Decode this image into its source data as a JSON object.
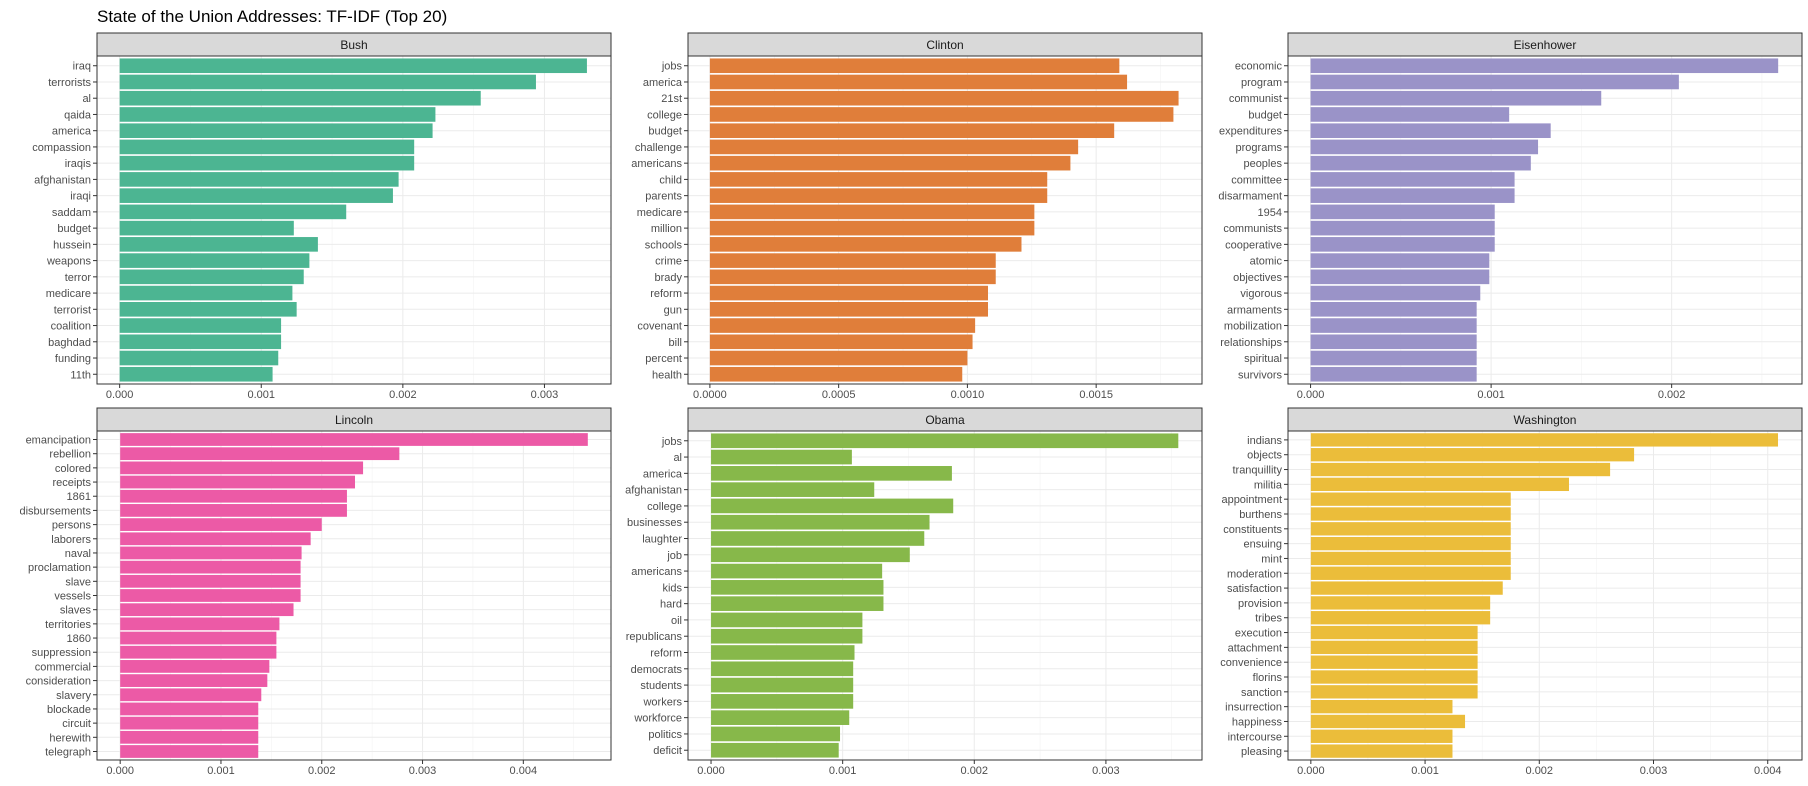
{
  "chart_data": {
    "type": "bar",
    "orientation": "horizontal",
    "title": "State of the Union Addresses: TF-IDF (Top 20)",
    "xlabel": "",
    "ylabel": "",
    "grid": true,
    "facets": [
      {
        "name": "Bush",
        "color": "#4cb592",
        "categories": [
          "iraq",
          "terrorists",
          "al",
          "qaida",
          "america",
          "compassion",
          "iraqis",
          "afghanistan",
          "iraqi",
          "saddam",
          "budget",
          "hussein",
          "weapons",
          "terror",
          "medicare",
          "terrorist",
          "coalition",
          "baghdad",
          "funding",
          "11th"
        ],
        "values": [
          0.0033,
          0.00294,
          0.00255,
          0.00223,
          0.00221,
          0.00208,
          0.00208,
          0.00197,
          0.00193,
          0.0016,
          0.00123,
          0.0014,
          0.00134,
          0.0013,
          0.00122,
          0.00125,
          0.00114,
          0.00114,
          0.00112,
          0.00108
        ],
        "xlim": [
          -0.00016,
          0.00347
        ],
        "ticks": [
          0,
          0.001,
          0.002,
          0.003
        ],
        "tick_labels": [
          "0.000",
          "0.001",
          "0.002",
          "0.003"
        ]
      },
      {
        "name": "Clinton",
        "color": "#e07e3a",
        "categories": [
          "jobs",
          "america",
          "21st",
          "college",
          "budget",
          "challenge",
          "americans",
          "child",
          "parents",
          "medicare",
          "million",
          "schools",
          "crime",
          "brady",
          "reform",
          "gun",
          "covenant",
          "bill",
          "percent",
          "health"
        ],
        "values": [
          0.00159,
          0.00162,
          0.00182,
          0.0018,
          0.00157,
          0.00143,
          0.0014,
          0.00131,
          0.00131,
          0.00126,
          0.00126,
          0.00121,
          0.00111,
          0.00111,
          0.00108,
          0.00108,
          0.00103,
          0.00102,
          0.001,
          0.00098
        ],
        "xlim": [
          -8.5e-05,
          0.001911
        ],
        "ticks": [
          0,
          0.0005,
          0.001,
          0.0015
        ],
        "tick_labels": [
          "0.0000",
          "0.0005",
          "0.0010",
          "0.0015"
        ]
      },
      {
        "name": "Eisenhower",
        "color": "#9a93c8",
        "categories": [
          "economic",
          "program",
          "communist",
          "budget",
          "expenditures",
          "programs",
          "peoples",
          "committee",
          "disarmament",
          "1954",
          "communists",
          "cooperative",
          "atomic",
          "objectives",
          "vigorous",
          "armaments",
          "mobilization",
          "relationships",
          "spiritual",
          "survivors"
        ],
        "values": [
          0.00259,
          0.00204,
          0.00161,
          0.0011,
          0.00133,
          0.00126,
          0.00122,
          0.00113,
          0.00113,
          0.00102,
          0.00102,
          0.00102,
          0.00099,
          0.00099,
          0.00094,
          0.00092,
          0.00092,
          0.00092,
          0.00092,
          0.00092
        ],
        "xlim": [
          -0.000125,
          0.002722
        ],
        "ticks": [
          0,
          0.001,
          0.002
        ],
        "tick_labels": [
          "0.000",
          "0.001",
          "0.002"
        ]
      },
      {
        "name": "Lincoln",
        "color": "#ec5aa6",
        "categories": [
          "emancipation",
          "rebellion",
          "colored",
          "receipts",
          "1861",
          "disbursements",
          "persons",
          "laborers",
          "naval",
          "proclamation",
          "slave",
          "vessels",
          "slaves",
          "territories",
          "1860",
          "suppression",
          "commercial",
          "consideration",
          "slavery",
          "blockade",
          "circuit",
          "herewith",
          "telegraph"
        ],
        "values": [
          0.00464,
          0.00277,
          0.00241,
          0.00233,
          0.00225,
          0.00225,
          0.002,
          0.00189,
          0.0018,
          0.00179,
          0.00179,
          0.00179,
          0.00172,
          0.00158,
          0.00155,
          0.00155,
          0.00148,
          0.00146,
          0.0014,
          0.00137,
          0.00137,
          0.00137,
          0.00137
        ],
        "xlim": [
          -0.00023,
          0.00487
        ],
        "ticks": [
          0,
          0.001,
          0.002,
          0.003,
          0.004
        ],
        "tick_labels": [
          "0.000",
          "0.001",
          "0.002",
          "0.003",
          "0.004"
        ]
      },
      {
        "name": "Obama",
        "color": "#87b84a",
        "categories": [
          "jobs",
          "al",
          "america",
          "afghanistan",
          "college",
          "businesses",
          "laughter",
          "job",
          "americans",
          "kids",
          "hard",
          "oil",
          "republicans",
          "reform",
          "democrats",
          "students",
          "workers",
          "workforce",
          "politics",
          "deficit"
        ],
        "values": [
          0.00355,
          0.00107,
          0.00183,
          0.00124,
          0.00184,
          0.00166,
          0.00162,
          0.00151,
          0.0013,
          0.00131,
          0.00131,
          0.00115,
          0.00115,
          0.00109,
          0.00108,
          0.00108,
          0.00108,
          0.00105,
          0.00098,
          0.00097
        ],
        "xlim": [
          -0.000175,
          0.00373
        ],
        "ticks": [
          0,
          0.001,
          0.002,
          0.003
        ],
        "tick_labels": [
          "0.000",
          "0.001",
          "0.002",
          "0.003"
        ]
      },
      {
        "name": "Washington",
        "color": "#ebbd3a",
        "categories": [
          "indians",
          "objects",
          "tranquillity",
          "militia",
          "appointment",
          "burthens",
          "constituents",
          "ensuing",
          "mint",
          "moderation",
          "satisfaction",
          "provision",
          "tribes",
          "execution",
          "attachment",
          "convenience",
          "florins",
          "sanction",
          "insurrection",
          "happiness",
          "intercourse",
          "pleasing"
        ],
        "values": [
          0.00409,
          0.00283,
          0.00262,
          0.00226,
          0.00175,
          0.00175,
          0.00175,
          0.00175,
          0.00175,
          0.00175,
          0.00168,
          0.00157,
          0.00157,
          0.00146,
          0.00146,
          0.00146,
          0.00146,
          0.00146,
          0.00124,
          0.00135,
          0.00124,
          0.00124
        ],
        "xlim": [
          -0.0002,
          0.0043
        ],
        "ticks": [
          0,
          0.001,
          0.002,
          0.003,
          0.004
        ],
        "tick_labels": [
          "0.000",
          "0.001",
          "0.002",
          "0.003",
          "0.004"
        ]
      }
    ]
  }
}
